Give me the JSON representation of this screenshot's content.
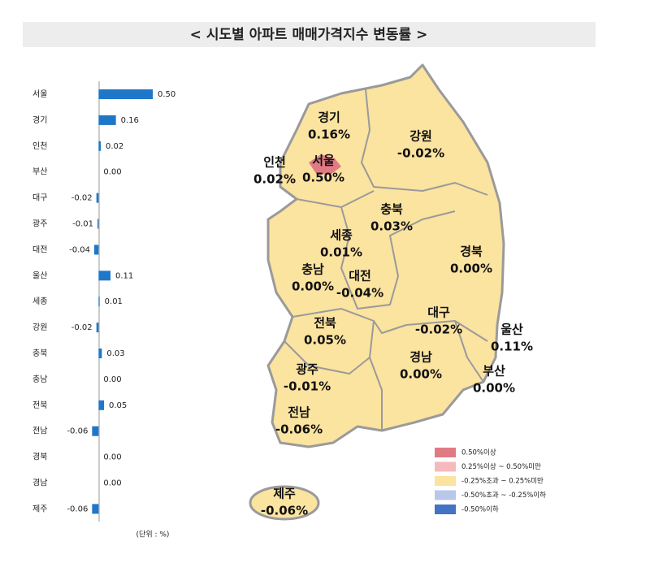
{
  "chart_data": {
    "type": "hbar",
    "title": "< 시도별 아파트 매매가격지수 변동률 >",
    "categories": [
      "서울",
      "경기",
      "인천",
      "부산",
      "대구",
      "광주",
      "대전",
      "울산",
      "세종",
      "강원",
      "충북",
      "충남",
      "전북",
      "전남",
      "경북",
      "경남",
      "제주"
    ],
    "values": [
      0.5,
      0.16,
      0.02,
      0,
      -0.02,
      -0.01,
      -0.04,
      0.11,
      0.01,
      -0.02,
      0.03,
      0,
      0.05,
      -0.06,
      0,
      0,
      -0.06
    ],
    "value_labels": [
      "0.50",
      "0.16",
      "0.02",
      "0.00",
      "-0.02",
      "-0.01",
      "-0.04",
      "0.11",
      "0.01",
      "-0.02",
      "0.03",
      "0.00",
      "0.05",
      "-0.06",
      "0.00",
      "0.00",
      "-0.06"
    ],
    "color": "#1f77c9",
    "xlim": [
      -0.1,
      0.5
    ],
    "unit_note": "(단위 : %)"
  },
  "map": {
    "regions": [
      {
        "name": "경기",
        "label": "0.16%"
      },
      {
        "name": "강원",
        "label": "-0.02%"
      },
      {
        "name": "인천",
        "label": "0.02%"
      },
      {
        "name": "서울",
        "label": "0.50%"
      },
      {
        "name": "충북",
        "label": "0.03%"
      },
      {
        "name": "세종",
        "label": "0.01%"
      },
      {
        "name": "경북",
        "label": "0.00%"
      },
      {
        "name": "충남",
        "label": "0.00%"
      },
      {
        "name": "대전",
        "label": "-0.04%"
      },
      {
        "name": "대구",
        "label": "-0.02%"
      },
      {
        "name": "울산",
        "label": "0.11%"
      },
      {
        "name": "전북",
        "label": "0.05%"
      },
      {
        "name": "경남",
        "label": "0.00%"
      },
      {
        "name": "부산",
        "label": "0.00%"
      },
      {
        "name": "광주",
        "label": "-0.01%"
      },
      {
        "name": "전남",
        "label": "-0.06%"
      },
      {
        "name": "제주",
        "label": "-0.06%"
      }
    ],
    "legend": [
      {
        "label": "0.50%이상",
        "color": "#e07b84"
      },
      {
        "label": "0.25%이상 ~ 0.50%미만",
        "color": "#f6b9be"
      },
      {
        "label": "-0.25%초과 ~ 0.25%미만",
        "color": "#fbe3a0"
      },
      {
        "label": "-0.50%초과 ~ -0.25%이하",
        "color": "#b9c8ea"
      },
      {
        "label": "-0.50%이하",
        "color": "#4472c4"
      }
    ]
  }
}
